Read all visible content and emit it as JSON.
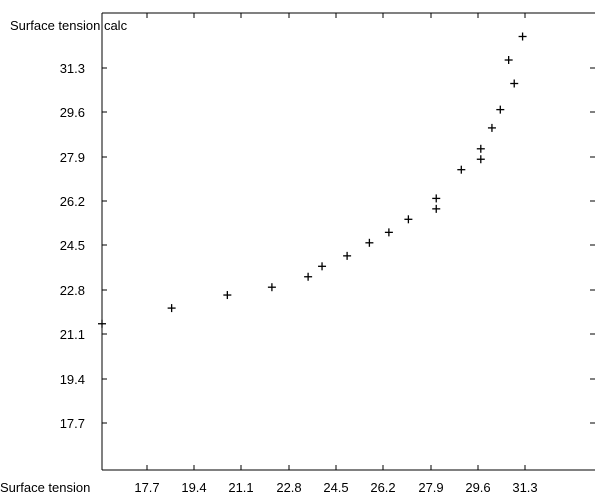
{
  "chart_data": {
    "type": "scatter",
    "xlabel": "Surface tension",
    "ylabel": "Surface tension calc",
    "xlim": [
      16.1,
      33.8
    ],
    "ylim": [
      15.9,
      33.4
    ],
    "x_ticks": [
      17.7,
      19.4,
      21.1,
      22.8,
      24.5,
      26.2,
      27.9,
      29.6,
      31.3
    ],
    "x_tick_labels": [
      "17.7",
      "19.4",
      "21.1",
      "22.8",
      "24.5",
      "26.2",
      "27.9",
      "29.6",
      "31.3"
    ],
    "y_ticks": [
      17.7,
      19.4,
      21.1,
      22.8,
      24.5,
      26.2,
      27.9,
      29.6,
      31.3
    ],
    "y_tick_labels": [
      "17.7",
      "19.4",
      "21.1",
      "22.8",
      "24.5",
      "26.2",
      "27.9",
      "29.6",
      "31.3"
    ],
    "grid": false,
    "marker": "+",
    "color": "#000000",
    "points": [
      {
        "x": 16.1,
        "y": 21.5
      },
      {
        "x": 18.6,
        "y": 22.1
      },
      {
        "x": 20.6,
        "y": 22.6
      },
      {
        "x": 22.2,
        "y": 22.9
      },
      {
        "x": 23.5,
        "y": 23.3
      },
      {
        "x": 24.0,
        "y": 23.7
      },
      {
        "x": 24.9,
        "y": 24.1
      },
      {
        "x": 25.7,
        "y": 24.6
      },
      {
        "x": 26.4,
        "y": 25.0
      },
      {
        "x": 27.1,
        "y": 25.5
      },
      {
        "x": 28.1,
        "y": 25.9
      },
      {
        "x": 28.1,
        "y": 26.3
      },
      {
        "x": 29.0,
        "y": 27.4
      },
      {
        "x": 29.7,
        "y": 27.8
      },
      {
        "x": 29.7,
        "y": 28.2
      },
      {
        "x": 30.1,
        "y": 29.0
      },
      {
        "x": 30.4,
        "y": 29.7
      },
      {
        "x": 30.9,
        "y": 30.7
      },
      {
        "x": 30.7,
        "y": 31.6
      },
      {
        "x": 31.2,
        "y": 32.5
      }
    ]
  }
}
